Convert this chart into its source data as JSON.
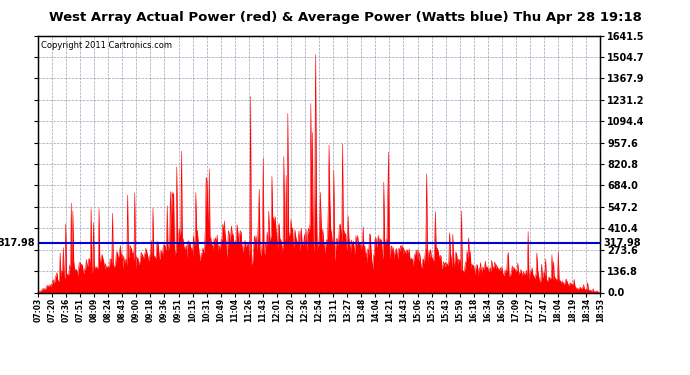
{
  "title": "West Array Actual Power (red) & Average Power (Watts blue) Thu Apr 28 19:18",
  "copyright": "Copyright 2011 Cartronics.com",
  "average_power": 317.98,
  "ymax": 1641.5,
  "yticks_right": [
    0.0,
    136.8,
    273.6,
    410.4,
    547.2,
    684.0,
    820.8,
    957.6,
    1094.4,
    1231.2,
    1367.9,
    1504.7,
    1641.5
  ],
  "ytick_labels_right": [
    "0.0",
    "136.8",
    "273.6",
    "410.4",
    "547.2",
    "684.0",
    "820.8",
    "957.6",
    "1094.4",
    "1231.2",
    "1367.9",
    "1504.7",
    "1641.5"
  ],
  "background_color": "#ffffff",
  "plot_bg_color": "#ffffff",
  "grid_color": "#8888aa",
  "bar_color": "#ff0000",
  "avg_line_color": "#0000cc",
  "title_bg": "#cccccc",
  "x_labels": [
    "07:03",
    "07:20",
    "07:36",
    "07:51",
    "08:09",
    "08:24",
    "08:43",
    "09:00",
    "09:18",
    "09:36",
    "09:51",
    "10:15",
    "10:31",
    "10:49",
    "11:04",
    "11:26",
    "11:43",
    "12:01",
    "12:20",
    "12:36",
    "12:54",
    "13:11",
    "13:27",
    "13:48",
    "14:04",
    "14:21",
    "14:43",
    "15:06",
    "15:25",
    "15:43",
    "15:59",
    "16:18",
    "16:34",
    "16:50",
    "17:09",
    "17:27",
    "17:47",
    "18:04",
    "18:19",
    "18:34",
    "18:53"
  ]
}
